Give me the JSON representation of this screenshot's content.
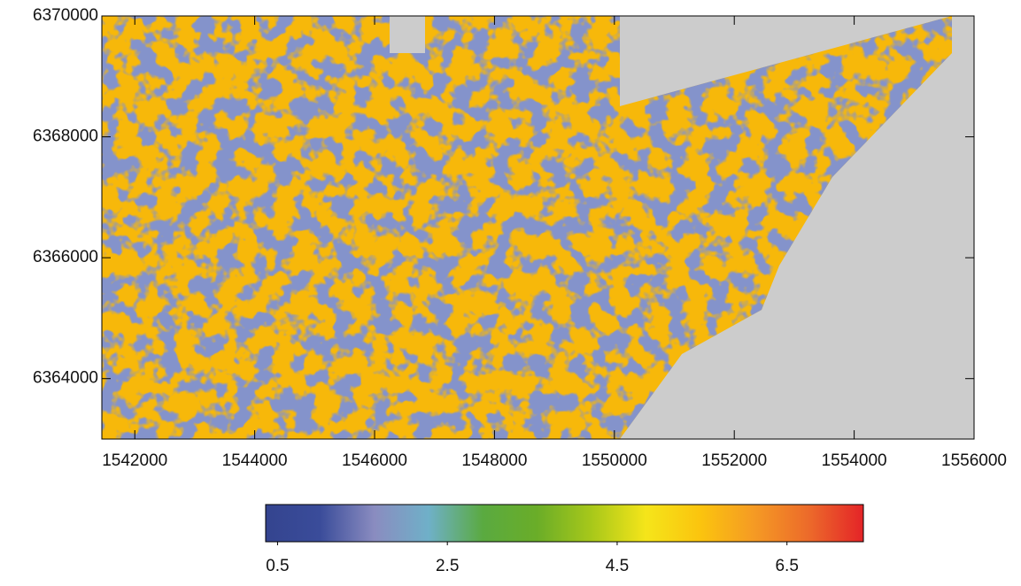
{
  "chart_data": {
    "type": "raster",
    "xlim": [
      1541450,
      1556000
    ],
    "xticks": [
      1542000,
      1544000,
      1546000,
      1548000,
      1550000,
      1552000,
      1554000,
      1556000
    ],
    "ylim": [
      6363000,
      6370000
    ],
    "yticks": [
      6364000,
      6366000,
      6368000,
      6370000
    ],
    "colorbar": {
      "lim": [
        0.36,
        7.4
      ],
      "ticks": [
        0.5,
        2.5,
        4.5,
        6.5
      ],
      "colors": [
        "#34448f",
        "#3a4c9a",
        "#8a8cc0",
        "#6fb0c8",
        "#5aaa40",
        "#6aad28",
        "#a8c81a",
        "#f5e51a",
        "#fbc40e",
        "#f59a24",
        "#ec6a2a",
        "#e42428"
      ]
    }
  }
}
